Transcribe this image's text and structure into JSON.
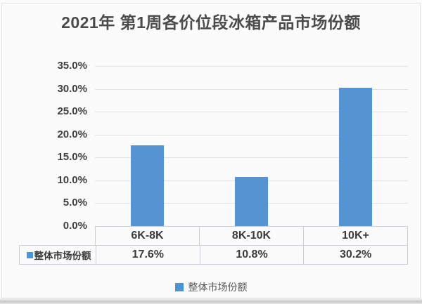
{
  "title": "2021年 第1周各价位段冰箱产品市场份额",
  "colors": {
    "bar": "#5593D3",
    "legend_swatch": "#4D94D6",
    "grid": "#E3E2E7",
    "table_border": "#C8D0DA",
    "title_text": "#4B4B4B"
  },
  "chart_data": {
    "type": "bar",
    "title": "2021年 第1周各价位段冰箱产品市场份额",
    "categories": [
      "6K-8K",
      "8K-10K",
      "10K+"
    ],
    "series": [
      {
        "name": "整体市场份额",
        "values": [
          17.6,
          10.8,
          30.2
        ],
        "display_values": [
          "17.6%",
          "10.8%",
          "30.2%"
        ],
        "color": "#5593D3"
      }
    ],
    "ylim": [
      0,
      35
    ],
    "ytick_step": 5,
    "yticks": [
      "35.0%",
      "30.0%",
      "25.0%",
      "20.0%",
      "15.0%",
      "10.0%",
      "5.0%",
      "0.0%"
    ],
    "grid": true,
    "legend_position": "bottom",
    "data_table_shown": true
  },
  "legend": {
    "label": "整体市场份额"
  },
  "table": {
    "row_label": "整体市场份额"
  }
}
